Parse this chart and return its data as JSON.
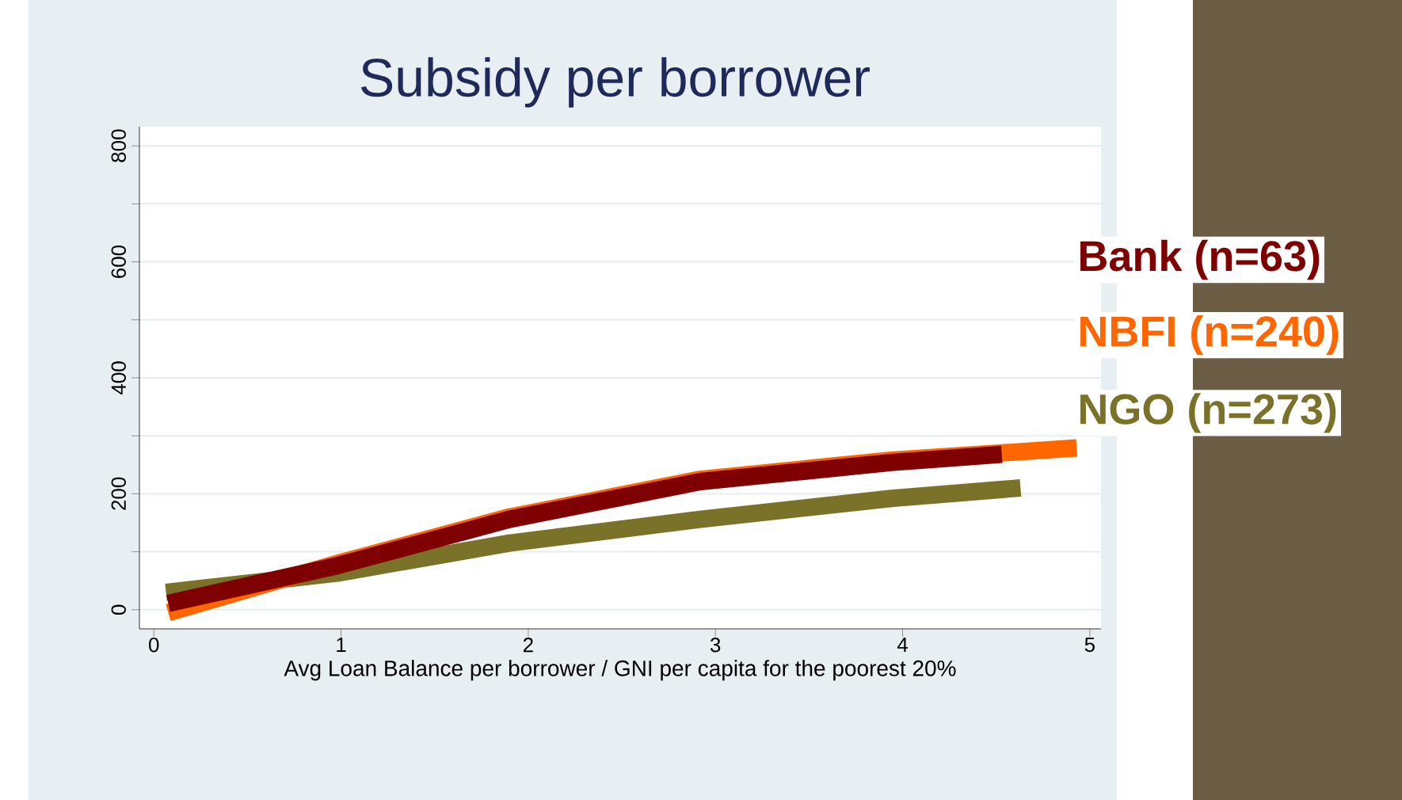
{
  "chart_data": {
    "type": "line",
    "title": "Subsidy per borrower",
    "xlabel": "Avg Loan Balance per borrower / GNI per capita for the poorest 20%",
    "xlim": [
      -0.077,
      5.06
    ],
    "ylim": [
      -33,
      833
    ],
    "xticks": [
      0,
      1,
      2,
      3,
      4,
      5
    ],
    "yticks": [
      0,
      {
        "value": 100,
        "label": null
      },
      200,
      {
        "value": 300,
        "label": null
      },
      400,
      {
        "value": 500,
        "label": null
      },
      600,
      {
        "value": 700,
        "label": null
      },
      800
    ],
    "grid": "y",
    "legend": false,
    "line_style": "solid",
    "marker": "none",
    "series": [
      {
        "name": "Bank (n=63)",
        "color": "#7f0000",
        "x": [
          0.077,
          0.98,
          1.9,
          2.92,
          3.94,
          4.53
        ],
        "values": [
          11,
          76,
          156,
          221,
          254,
          268
        ]
      },
      {
        "name": "NBFI (n=240)",
        "color": "#ff6600",
        "x": [
          0.077,
          0.98,
          1.9,
          2.92,
          3.94,
          4.93
        ],
        "values": [
          -5,
          80,
          160,
          225,
          258,
          279
        ]
      },
      {
        "name": "NGO (n=273)",
        "color": "#7a7228",
        "x": [
          0.065,
          0.98,
          1.9,
          2.92,
          3.94,
          4.63
        ],
        "values": [
          30,
          63,
          115,
          156,
          192,
          210
        ]
      }
    ]
  }
}
